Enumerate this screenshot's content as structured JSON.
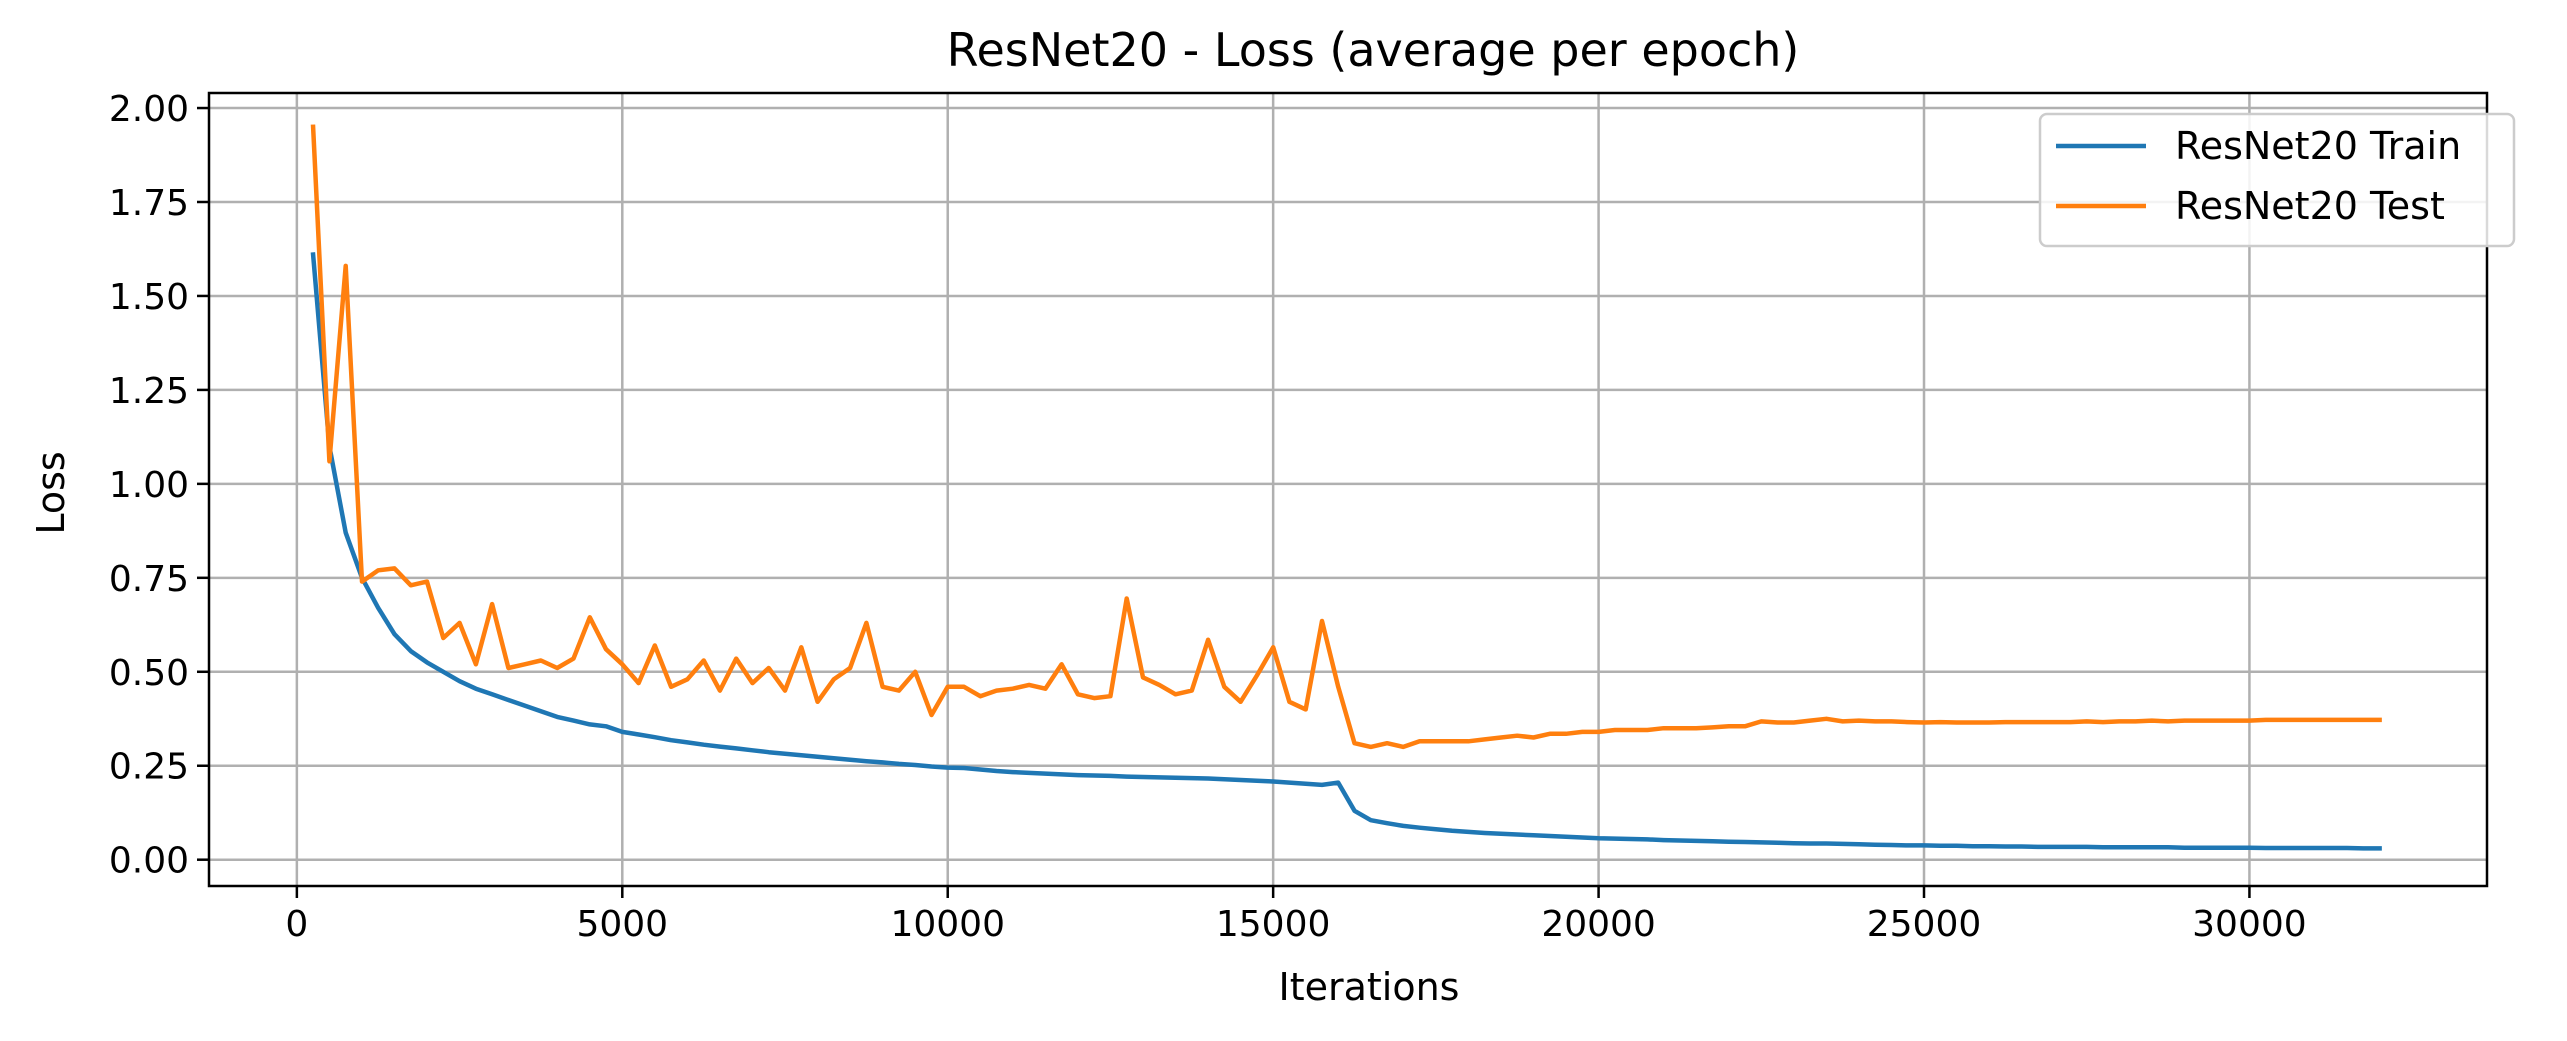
{
  "chart_data": {
    "type": "line",
    "title": "ResNet20 - Loss (average per epoch)",
    "xlabel": "Iterations",
    "ylabel": "Loss",
    "xlim": [
      -1350,
      33650
    ],
    "ylim": [
      -0.07,
      2.04
    ],
    "xticks": [
      0,
      5000,
      10000,
      15000,
      20000,
      25000,
      30000
    ],
    "xtick_labels": [
      "0",
      "5000",
      "10000",
      "15000",
      "20000",
      "25000",
      "30000"
    ],
    "yticks": [
      0.0,
      0.25,
      0.5,
      0.75,
      1.0,
      1.25,
      1.5,
      1.75,
      2.0
    ],
    "ytick_labels": [
      "0.00",
      "0.25",
      "0.50",
      "0.75",
      "1.00",
      "1.25",
      "1.50",
      "1.75",
      "2.00"
    ],
    "grid": true,
    "legend_position": "top-right",
    "colors": {
      "train": "#1f77b4",
      "test": "#ff7f0e"
    },
    "series": [
      {
        "name": "ResNet20 Train",
        "x": [
          250,
          500,
          750,
          1000,
          1250,
          1500,
          1750,
          2000,
          2250,
          2500,
          2750,
          3000,
          3250,
          3500,
          3750,
          4000,
          4250,
          4500,
          4750,
          5000,
          5250,
          5500,
          5750,
          6000,
          6250,
          6500,
          6750,
          7000,
          7250,
          7500,
          7750,
          8000,
          8250,
          8500,
          8750,
          9000,
          9250,
          9500,
          9750,
          10000,
          10250,
          10500,
          10750,
          11000,
          11250,
          11500,
          11750,
          12000,
          12250,
          12500,
          12750,
          13000,
          13250,
          13500,
          13750,
          14000,
          14250,
          14500,
          14750,
          15000,
          15250,
          15500,
          15750,
          16000,
          16250,
          16500,
          16750,
          17000,
          17250,
          17500,
          17750,
          18000,
          18250,
          18500,
          18750,
          19000,
          19250,
          19500,
          19750,
          20000,
          20250,
          20500,
          20750,
          21000,
          21250,
          21500,
          21750,
          22000,
          22250,
          22500,
          22750,
          23000,
          23250,
          23500,
          23750,
          24000,
          24250,
          24500,
          24750,
          25000,
          25250,
          25500,
          25750,
          26000,
          26250,
          26500,
          26750,
          27000,
          27250,
          27500,
          27750,
          28000,
          28250,
          28500,
          28750,
          29000,
          29250,
          29500,
          29750,
          30000,
          30250,
          30500,
          30750,
          31000,
          31250,
          31500,
          31750,
          32000
        ],
        "values": [
          1.61,
          1.1,
          0.87,
          0.75,
          0.67,
          0.6,
          0.555,
          0.525,
          0.5,
          0.475,
          0.455,
          0.44,
          0.425,
          0.41,
          0.395,
          0.38,
          0.37,
          0.36,
          0.355,
          0.34,
          0.333,
          0.326,
          0.318,
          0.312,
          0.306,
          0.301,
          0.296,
          0.291,
          0.286,
          0.282,
          0.278,
          0.274,
          0.27,
          0.266,
          0.262,
          0.259,
          0.255,
          0.252,
          0.248,
          0.245,
          0.244,
          0.24,
          0.236,
          0.233,
          0.231,
          0.229,
          0.227,
          0.225,
          0.224,
          0.223,
          0.221,
          0.22,
          0.219,
          0.218,
          0.217,
          0.216,
          0.214,
          0.212,
          0.21,
          0.208,
          0.205,
          0.202,
          0.199,
          0.205,
          0.13,
          0.105,
          0.097,
          0.09,
          0.085,
          0.081,
          0.077,
          0.074,
          0.071,
          0.069,
          0.067,
          0.065,
          0.063,
          0.061,
          0.059,
          0.057,
          0.056,
          0.055,
          0.054,
          0.052,
          0.051,
          0.05,
          0.049,
          0.048,
          0.047,
          0.046,
          0.045,
          0.044,
          0.043,
          0.043,
          0.042,
          0.041,
          0.04,
          0.039,
          0.038,
          0.038,
          0.037,
          0.037,
          0.036,
          0.036,
          0.035,
          0.035,
          0.034,
          0.034,
          0.034,
          0.034,
          0.033,
          0.033,
          0.033,
          0.033,
          0.033,
          0.032,
          0.032,
          0.032,
          0.032,
          0.032,
          0.031,
          0.031,
          0.031,
          0.031,
          0.031,
          0.031,
          0.03,
          0.03
        ]
      },
      {
        "name": "ResNet20 Test",
        "x": [
          250,
          500,
          750,
          1000,
          1250,
          1500,
          1750,
          2000,
          2250,
          2500,
          2750,
          3000,
          3250,
          3500,
          3750,
          4000,
          4250,
          4500,
          4750,
          5000,
          5250,
          5500,
          5750,
          6000,
          6250,
          6500,
          6750,
          7000,
          7250,
          7500,
          7750,
          8000,
          8250,
          8500,
          8750,
          9000,
          9250,
          9500,
          9750,
          10000,
          10250,
          10500,
          10750,
          11000,
          11250,
          11500,
          11750,
          12000,
          12250,
          12500,
          12750,
          13000,
          13250,
          13500,
          13750,
          14000,
          14250,
          14500,
          14750,
          15000,
          15250,
          15500,
          15750,
          16000,
          16250,
          16500,
          16750,
          17000,
          17250,
          17500,
          17750,
          18000,
          18250,
          18500,
          18750,
          19000,
          19250,
          19500,
          19750,
          20000,
          20250,
          20500,
          20750,
          21000,
          21250,
          21500,
          21750,
          22000,
          22250,
          22500,
          22750,
          23000,
          23250,
          23500,
          23750,
          24000,
          24250,
          24500,
          24750,
          25000,
          25250,
          25500,
          25750,
          26000,
          26250,
          26500,
          26750,
          27000,
          27250,
          27500,
          27750,
          28000,
          28250,
          28500,
          28750,
          29000,
          29250,
          29500,
          29750,
          30000,
          30250,
          30500,
          30750,
          31000,
          31250,
          31500,
          31750,
          32000
        ],
        "values": [
          1.95,
          1.06,
          1.58,
          0.74,
          0.77,
          0.775,
          0.73,
          0.74,
          0.59,
          0.63,
          0.52,
          0.68,
          0.51,
          0.52,
          0.53,
          0.51,
          0.535,
          0.645,
          0.56,
          0.52,
          0.47,
          0.57,
          0.46,
          0.48,
          0.53,
          0.45,
          0.535,
          0.47,
          0.51,
          0.45,
          0.565,
          0.42,
          0.48,
          0.51,
          0.63,
          0.46,
          0.45,
          0.5,
          0.385,
          0.46,
          0.46,
          0.435,
          0.45,
          0.455,
          0.465,
          0.455,
          0.52,
          0.44,
          0.43,
          0.435,
          0.695,
          0.485,
          0.465,
          0.44,
          0.45,
          0.585,
          0.46,
          0.42,
          0.49,
          0.565,
          0.42,
          0.4,
          0.635,
          0.46,
          0.31,
          0.3,
          0.31,
          0.3,
          0.315,
          0.315,
          0.315,
          0.315,
          0.32,
          0.325,
          0.33,
          0.325,
          0.335,
          0.335,
          0.34,
          0.34,
          0.345,
          0.345,
          0.345,
          0.35,
          0.35,
          0.35,
          0.352,
          0.355,
          0.355,
          0.368,
          0.365,
          0.365,
          0.37,
          0.375,
          0.368,
          0.37,
          0.368,
          0.368,
          0.366,
          0.365,
          0.366,
          0.365,
          0.365,
          0.365,
          0.366,
          0.366,
          0.366,
          0.366,
          0.366,
          0.368,
          0.366,
          0.368,
          0.368,
          0.37,
          0.368,
          0.37,
          0.37,
          0.37,
          0.37,
          0.37,
          0.372,
          0.372,
          0.372,
          0.372,
          0.372,
          0.372,
          0.372,
          0.372
        ]
      }
    ]
  }
}
